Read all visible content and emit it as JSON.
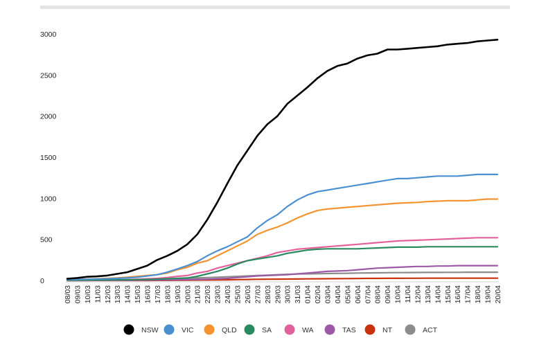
{
  "chart_data": {
    "type": "line",
    "title": "",
    "xlabel": "",
    "ylabel": "",
    "ylim": [
      0,
      3000
    ],
    "yticks": [
      0,
      500,
      1000,
      1500,
      2000,
      2500,
      3000
    ],
    "ytick_labels": [
      "0",
      "500",
      "1000",
      "1500",
      "2000",
      "2500",
      "3000"
    ],
    "legend_position": "bottom",
    "categories": [
      "08/03",
      "09/03",
      "10/03",
      "11/03",
      "12/03",
      "13/03",
      "14/03",
      "15/03",
      "16/03",
      "17/03",
      "18/03",
      "19/03",
      "20/03",
      "21/03",
      "22/03",
      "23/03",
      "24/03",
      "25/03",
      "26/03",
      "27/03",
      "28/03",
      "29/03",
      "30/03",
      "31/03",
      "01/04",
      "02/04",
      "03/04",
      "04/04",
      "05/04",
      "06/04",
      "07/04",
      "08/04",
      "09/04",
      "10/04",
      "11/04",
      "12/04",
      "13/04",
      "14/04",
      "15/04",
      "16/04",
      "17/04",
      "18/04",
      "19/04",
      "20/04"
    ],
    "series": [
      {
        "name": "NSW",
        "color": "#000000",
        "values": [
          20,
          30,
          45,
          50,
          60,
          80,
          100,
          140,
          180,
          250,
          300,
          360,
          440,
          560,
          740,
          950,
          1180,
          1400,
          1580,
          1760,
          1900,
          2000,
          2150,
          2250,
          2350,
          2460,
          2550,
          2610,
          2640,
          2700,
          2740,
          2760,
          2810,
          2810,
          2820,
          2830,
          2840,
          2850,
          2870,
          2880,
          2890,
          2910,
          2920,
          2930
        ]
      },
      {
        "name": "VIC",
        "color": "#4a90d0",
        "values": [
          10,
          12,
          15,
          18,
          20,
          25,
          30,
          40,
          55,
          70,
          100,
          140,
          180,
          230,
          300,
          360,
          410,
          470,
          530,
          640,
          730,
          800,
          900,
          980,
          1040,
          1080,
          1100,
          1120,
          1140,
          1160,
          1180,
          1200,
          1220,
          1240,
          1240,
          1250,
          1260,
          1270,
          1270,
          1270,
          1280,
          1290,
          1290,
          1290
        ]
      },
      {
        "name": "QLD",
        "color": "#f39430",
        "values": [
          10,
          12,
          15,
          20,
          25,
          30,
          40,
          50,
          60,
          70,
          90,
          130,
          160,
          210,
          240,
          300,
          360,
          420,
          480,
          560,
          610,
          650,
          700,
          760,
          810,
          850,
          870,
          880,
          890,
          900,
          910,
          920,
          930,
          940,
          945,
          950,
          960,
          965,
          970,
          970,
          970,
          980,
          990,
          990
        ]
      },
      {
        "name": "SA",
        "color": "#2a8a5f",
        "values": [
          2,
          3,
          4,
          5,
          6,
          7,
          8,
          10,
          12,
          15,
          20,
          25,
          30,
          50,
          80,
          110,
          150,
          200,
          240,
          260,
          280,
          300,
          330,
          350,
          370,
          380,
          385,
          385,
          385,
          385,
          390,
          395,
          400,
          405,
          405,
          405,
          410,
          410,
          410,
          410,
          410,
          410,
          410,
          410
        ]
      },
      {
        "name": "WA",
        "color": "#e3619a",
        "values": [
          2,
          3,
          4,
          5,
          6,
          8,
          10,
          15,
          20,
          25,
          35,
          50,
          60,
          90,
          110,
          150,
          180,
          210,
          240,
          270,
          300,
          340,
          360,
          380,
          390,
          400,
          410,
          420,
          430,
          440,
          450,
          460,
          470,
          480,
          485,
          490,
          495,
          500,
          505,
          510,
          515,
          520,
          520,
          520
        ]
      },
      {
        "name": "TAS",
        "color": "#9c5aa6",
        "values": [
          0,
          0,
          1,
          1,
          1,
          2,
          2,
          3,
          4,
          5,
          6,
          8,
          10,
          12,
          15,
          20,
          25,
          35,
          45,
          55,
          60,
          65,
          70,
          80,
          90,
          100,
          110,
          115,
          120,
          130,
          140,
          150,
          155,
          160,
          165,
          170,
          170,
          175,
          175,
          180,
          180,
          180,
          180,
          180
        ]
      },
      {
        "name": "NT",
        "color": "#c8320d",
        "values": [
          0,
          0,
          0,
          0,
          0,
          0,
          0,
          0,
          0,
          1,
          1,
          2,
          3,
          4,
          5,
          6,
          8,
          10,
          12,
          14,
          15,
          16,
          17,
          18,
          19,
          20,
          21,
          22,
          23,
          24,
          25,
          25,
          26,
          26,
          27,
          27,
          28,
          28,
          28,
          28,
          28,
          28,
          28,
          28
        ]
      },
      {
        "name": "ACT",
        "color": "#8c8c8c",
        "values": [
          0,
          0,
          0,
          1,
          1,
          2,
          3,
          5,
          8,
          10,
          15,
          20,
          25,
          30,
          35,
          40,
          45,
          50,
          55,
          60,
          65,
          70,
          75,
          78,
          80,
          82,
          84,
          86,
          88,
          90,
          92,
          93,
          94,
          95,
          96,
          97,
          98,
          98,
          99,
          99,
          100,
          100,
          100,
          100
        ]
      }
    ]
  }
}
